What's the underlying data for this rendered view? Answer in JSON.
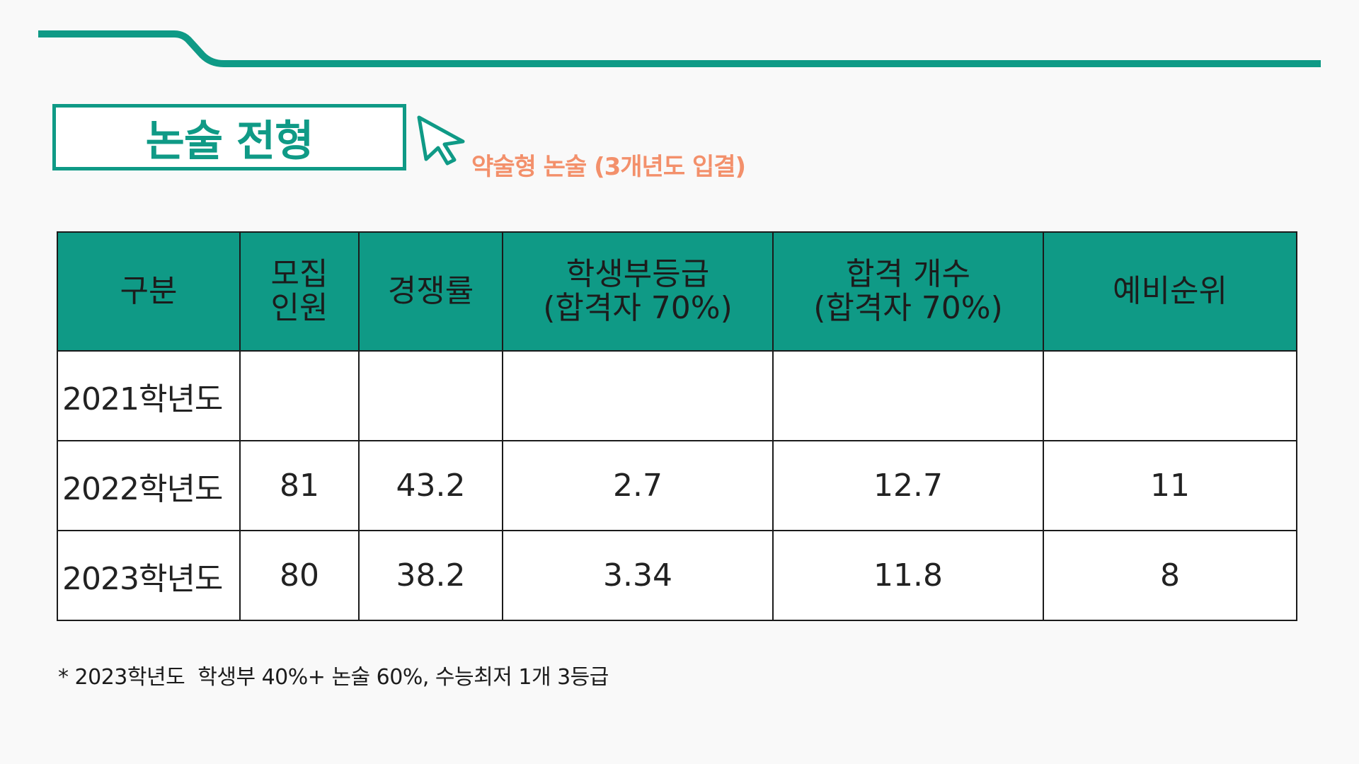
{
  "colors": {
    "accent": "#0f9a86",
    "subtitle": "#f3906b",
    "text": "#1c1c1c",
    "background": "#f9f9f9"
  },
  "icons": {
    "cursor": "cursor-arrow-icon"
  },
  "title": "논술 전형",
  "subtitle": "약술형 논술 (3개년도 입결)",
  "table": {
    "headers": [
      {
        "line1": "구분",
        "line2": ""
      },
      {
        "line1": "모집",
        "line2": "인원"
      },
      {
        "line1": "경쟁률",
        "line2": ""
      },
      {
        "line1": "학생부등급",
        "line2": "(합격자 70%)"
      },
      {
        "line1": "합격 개수",
        "line2": "(합격자 70%)"
      },
      {
        "line1": "예비순위",
        "line2": ""
      }
    ],
    "rows": [
      {
        "year": "2021학년도",
        "recruit": "",
        "competition": "",
        "grade": "",
        "pass_count": "",
        "waitlist": ""
      },
      {
        "year": "2022학년도",
        "recruit": "81",
        "competition": "43.2",
        "grade": "2.7",
        "pass_count": "12.7",
        "waitlist": "11"
      },
      {
        "year": "2023학년도",
        "recruit": "80",
        "competition": "38.2",
        "grade": "3.34",
        "pass_count": "11.8",
        "waitlist": "8"
      }
    ]
  },
  "footnote": "* 2023학년도  학생부 40%+ 논술 60%, 수능최저 1개 3등급"
}
